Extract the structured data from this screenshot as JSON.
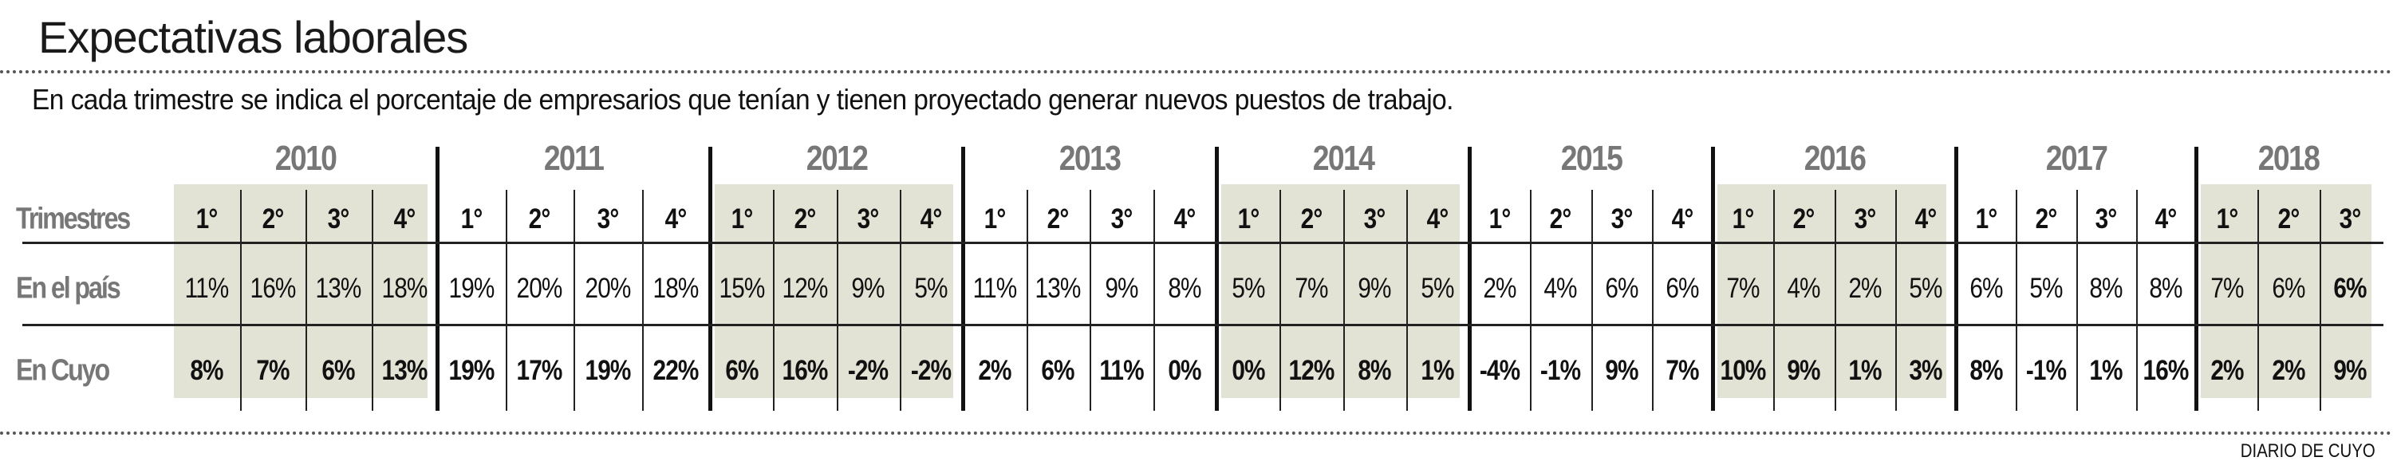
{
  "header": {
    "title": "Expectativas laborales",
    "subtitle": "En cada trimestre se indica el porcentaje de empresarios que tenían y tienen proyectado generar nuevos puestos de trabajo."
  },
  "colors": {
    "shade": "#e3e3d5",
    "label_gray": "#777777"
  },
  "chart_data": {
    "type": "table",
    "title": "Expectativas laborales",
    "row_labels": {
      "quarters": "Trimestres",
      "pais": "En el país",
      "cuyo": "En Cuyo"
    },
    "years": [
      {
        "year": "2010",
        "shaded": true,
        "quarters": [
          "1°",
          "2°",
          "3°",
          "4°"
        ],
        "pais": [
          "11%",
          "16%",
          "13%",
          "18%"
        ],
        "cuyo": [
          "8%",
          "7%",
          "6%",
          "13%"
        ]
      },
      {
        "year": "2011",
        "shaded": false,
        "quarters": [
          "1°",
          "2°",
          "3°",
          "4°"
        ],
        "pais": [
          "19%",
          "20%",
          "20%",
          "18%"
        ],
        "cuyo": [
          "19%",
          "17%",
          "19%",
          "22%"
        ]
      },
      {
        "year": "2012",
        "shaded": true,
        "quarters": [
          "1°",
          "2°",
          "3°",
          "4°"
        ],
        "pais": [
          "15%",
          "12%",
          "9%",
          "5%"
        ],
        "cuyo": [
          "6%",
          "16%",
          "-2%",
          "-2%"
        ]
      },
      {
        "year": "2013",
        "shaded": false,
        "quarters": [
          "1°",
          "2°",
          "3°",
          "4°"
        ],
        "pais": [
          "11%",
          "13%",
          "9%",
          "8%"
        ],
        "cuyo": [
          "2%",
          "6%",
          "11%",
          "0%"
        ]
      },
      {
        "year": "2014",
        "shaded": true,
        "quarters": [
          "1°",
          "2°",
          "3°",
          "4°"
        ],
        "pais": [
          "5%",
          "7%",
          "9%",
          "5%"
        ],
        "cuyo": [
          "0%",
          "12%",
          "8%",
          "1%"
        ]
      },
      {
        "year": "2015",
        "shaded": false,
        "quarters": [
          "1°",
          "2°",
          "3°",
          "4°"
        ],
        "pais": [
          "2%",
          "4%",
          "6%",
          "6%"
        ],
        "cuyo": [
          "-4%",
          "-1%",
          "9%",
          "7%"
        ]
      },
      {
        "year": "2016",
        "shaded": true,
        "quarters": [
          "1°",
          "2°",
          "3°",
          "4°"
        ],
        "pais": [
          "7%",
          "4%",
          "2%",
          "5%"
        ],
        "cuyo": [
          "10%",
          "9%",
          "1%",
          "3%"
        ]
      },
      {
        "year": "2017",
        "shaded": false,
        "quarters": [
          "1°",
          "2°",
          "3°",
          "4°"
        ],
        "pais": [
          "6%",
          "5%",
          "8%",
          "8%"
        ],
        "cuyo": [
          "8%",
          "-1%",
          "1%",
          "16%"
        ]
      },
      {
        "year": "2018",
        "shaded": true,
        "quarters": [
          "1°",
          "2°",
          "3°"
        ],
        "pais": [
          "7%",
          "6%",
          "6%"
        ],
        "cuyo": [
          "2%",
          "2%",
          "9%"
        ],
        "pais_bold_index": 2
      }
    ]
  },
  "footer": {
    "source": "DIARIO DE CUYO"
  }
}
